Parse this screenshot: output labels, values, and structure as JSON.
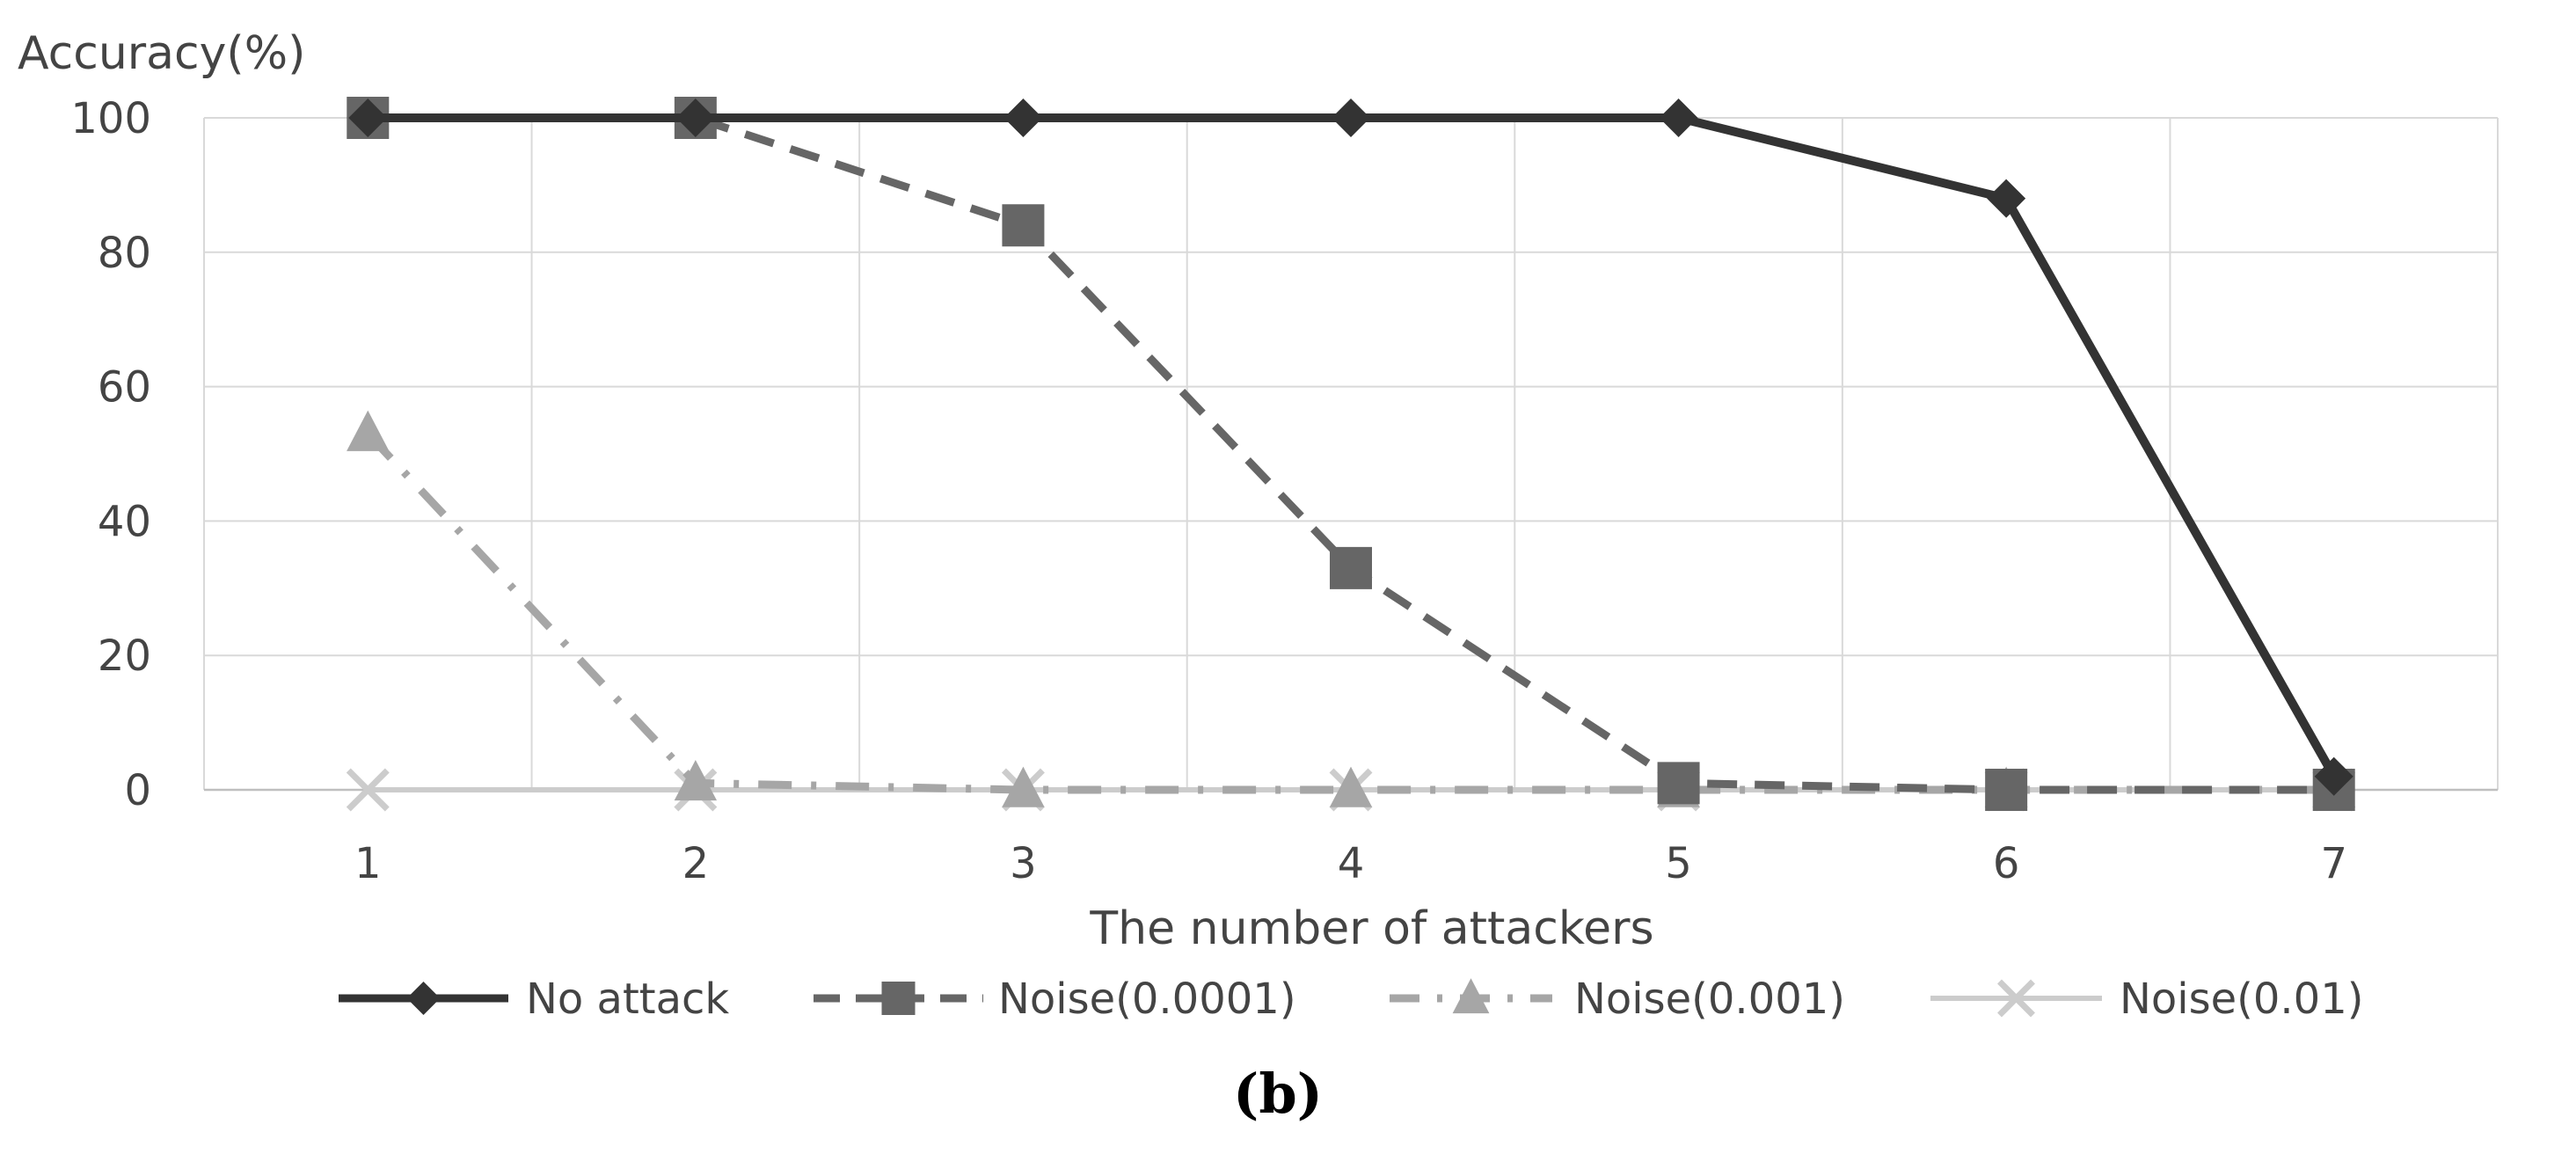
{
  "chart_data": {
    "type": "line",
    "title": "",
    "xlabel": "The number of attackers",
    "ylabel": "Accuracy(%)",
    "x": [
      1,
      2,
      3,
      4,
      5,
      6,
      7
    ],
    "xlim": [
      0.5,
      7.5
    ],
    "ylim": [
      0,
      100
    ],
    "yticks": [
      0,
      20,
      40,
      60,
      80,
      100
    ],
    "grid": true,
    "legend_position": "bottom",
    "caption": "(b)",
    "series": [
      {
        "name": "No attack",
        "values": [
          100,
          100,
          100,
          100,
          100,
          88,
          2
        ],
        "color": "#333333",
        "line_style": "solid",
        "marker": "diamond"
      },
      {
        "name": "Noise(0.0001)",
        "values": [
          100,
          100,
          84,
          33,
          1,
          0,
          0
        ],
        "color": "#666666",
        "line_style": "dashed",
        "marker": "square"
      },
      {
        "name": "Noise(0.001)",
        "values": [
          53,
          1,
          0,
          0,
          0,
          0,
          0
        ],
        "color": "#a6a6a6",
        "line_style": "dashdot",
        "marker": "triangle"
      },
      {
        "name": "Noise(0.01)",
        "values": [
          0,
          0,
          0,
          0,
          0,
          0,
          0
        ],
        "color": "#cccccc",
        "line_style": "solid",
        "marker": "x"
      }
    ]
  }
}
